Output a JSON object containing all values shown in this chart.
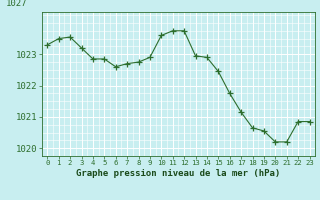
{
  "x": [
    0,
    1,
    2,
    3,
    4,
    5,
    6,
    7,
    8,
    9,
    10,
    11,
    12,
    13,
    14,
    15,
    16,
    17,
    18,
    19,
    20,
    21,
    22,
    23
  ],
  "y": [
    1023.3,
    1023.5,
    1023.55,
    1023.2,
    1022.85,
    1022.85,
    1022.6,
    1022.7,
    1022.75,
    1022.9,
    1023.6,
    1023.75,
    1023.75,
    1022.95,
    1022.9,
    1022.45,
    1021.75,
    1021.15,
    1020.65,
    1020.55,
    1020.2,
    1020.2,
    1020.85,
    1020.85
  ],
  "line_color": "#2d6e2d",
  "marker": "+",
  "marker_size": 4,
  "bg_color": "#c8eef0",
  "grid_color": "#ffffff",
  "xlabel": "Graphe pression niveau de la mer (hPa)",
  "xlabel_color": "#1a4a1a",
  "tick_color": "#2d6e2d",
  "ylim": [
    1019.75,
    1024.35
  ],
  "yticks": [
    1020,
    1021,
    1022,
    1023
  ],
  "xticks": [
    0,
    1,
    2,
    3,
    4,
    5,
    6,
    7,
    8,
    9,
    10,
    11,
    12,
    13,
    14,
    15,
    16,
    17,
    18,
    19,
    20,
    21,
    22,
    23
  ],
  "spine_color": "#2d6e2d",
  "fig_width": 3.2,
  "fig_height": 2.0,
  "dpi": 100
}
